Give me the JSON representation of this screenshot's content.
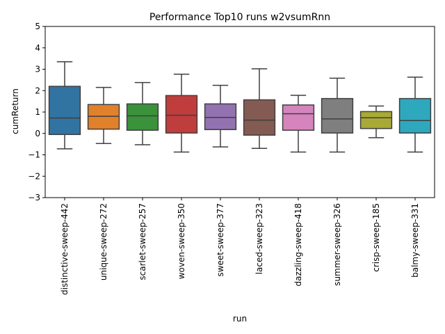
{
  "chart_data": {
    "type": "box",
    "title": "Performance Top10 runs w2vsumRnn",
    "xlabel": "run",
    "ylabel": "cumReturn",
    "ylim": [
      -3,
      5
    ],
    "yticks": [
      -3,
      -2,
      -1,
      0,
      1,
      2,
      3,
      4,
      5
    ],
    "ytick_labels": [
      "−3",
      "−2",
      "−1",
      "0",
      "1",
      "2",
      "3",
      "4",
      "5"
    ],
    "grid": false,
    "categories": [
      "distinctive-sweep-442",
      "unique-sweep-272",
      "scarlet-sweep-257",
      "woven-sweep-350",
      "sweet-sweep-377",
      "laced-sweep-323",
      "dazzling-sweep-418",
      "summer-sweep-326",
      "crisp-sweep-185",
      "balmy-sweep-331"
    ],
    "boxes": [
      {
        "whisker_low": -0.72,
        "q1": -0.05,
        "median": 0.72,
        "q3": 2.2,
        "whisker_high": 3.35,
        "color": "#3274a1"
      },
      {
        "whisker_low": -0.47,
        "q1": 0.2,
        "median": 0.8,
        "q3": 1.35,
        "whisker_high": 2.15,
        "color": "#e1812c"
      },
      {
        "whisker_low": -0.53,
        "q1": 0.15,
        "median": 0.82,
        "q3": 1.38,
        "whisker_high": 2.38,
        "color": "#3a923a"
      },
      {
        "whisker_low": -0.87,
        "q1": 0.02,
        "median": 0.85,
        "q3": 1.77,
        "whisker_high": 2.77,
        "color": "#c03d3e"
      },
      {
        "whisker_low": -0.63,
        "q1": 0.18,
        "median": 0.75,
        "q3": 1.38,
        "whisker_high": 2.25,
        "color": "#9372b2"
      },
      {
        "whisker_low": -0.7,
        "q1": -0.08,
        "median": 0.62,
        "q3": 1.57,
        "whisker_high": 3.02,
        "color": "#845b53"
      },
      {
        "whisker_low": -0.87,
        "q1": 0.15,
        "median": 0.92,
        "q3": 1.33,
        "whisker_high": 1.78,
        "color": "#d684bd"
      },
      {
        "whisker_low": -0.87,
        "q1": 0.02,
        "median": 0.68,
        "q3": 1.63,
        "whisker_high": 2.58,
        "color": "#7f7f7f"
      },
      {
        "whisker_low": -0.2,
        "q1": 0.23,
        "median": 0.73,
        "q3": 1.02,
        "whisker_high": 1.28,
        "color": "#a9aa35"
      },
      {
        "whisker_low": -0.87,
        "q1": 0.02,
        "median": 0.6,
        "q3": 1.63,
        "whisker_high": 2.63,
        "color": "#2ea8bd"
      }
    ]
  }
}
